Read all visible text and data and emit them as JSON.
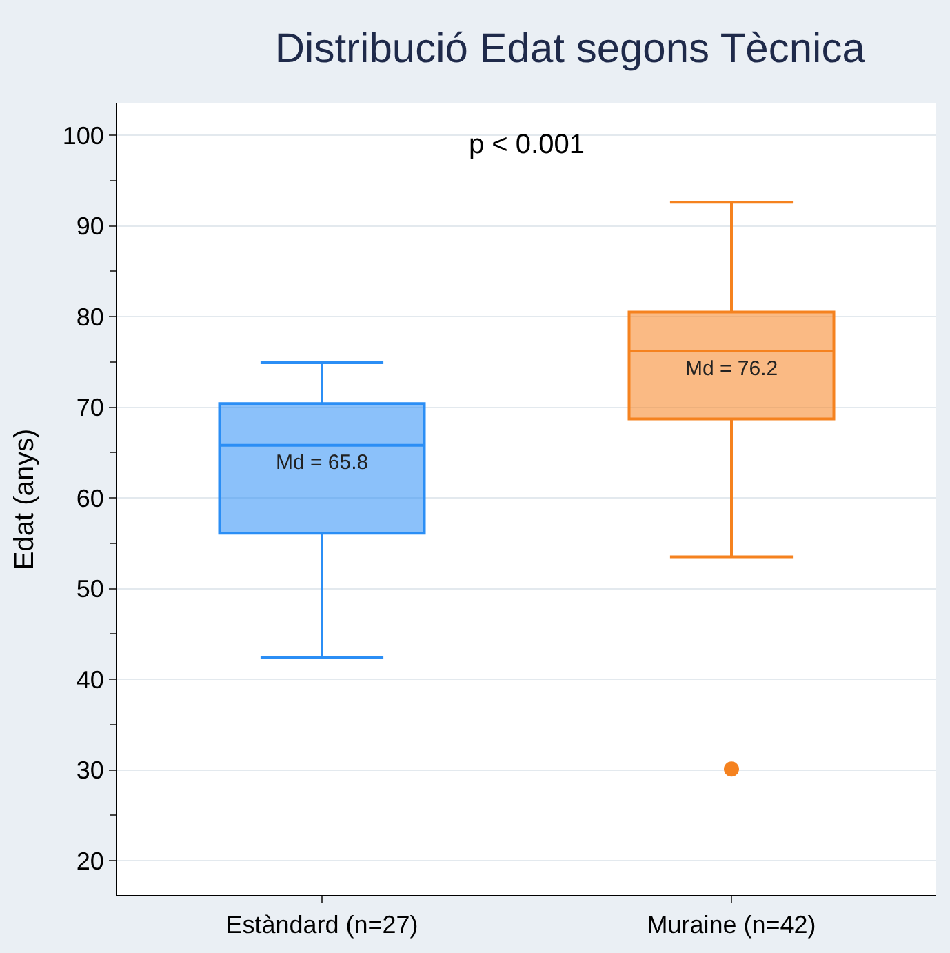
{
  "chart_data": {
    "type": "box",
    "title": "Distribució Edat segons Tècnica",
    "ylabel": "Edat (anys)",
    "categories": [
      "Estàndard (n=27)",
      "Muraine (n=42)"
    ],
    "colors": [
      "#2b8ef5",
      "#f5821f"
    ],
    "boxes": [
      {
        "low": 42.4,
        "q1": 56.1,
        "median": 65.8,
        "q3": 70.4,
        "high": 74.9
      },
      {
        "low": 53.5,
        "q1": 68.7,
        "median": 76.2,
        "q3": 80.5,
        "high": 92.6,
        "outliers": [
          30.1
        ]
      }
    ],
    "ylim": [
      16.2,
      103.5
    ],
    "yticks": [
      20,
      30,
      40,
      50,
      60,
      70,
      80,
      90,
      100
    ],
    "grid": "y",
    "annotations": [
      {
        "text": "Md = 65.8",
        "x": "Estàndard (n=27)",
        "y": 65.8
      },
      {
        "text": "Md = 76.2",
        "x": "Muraine (n=42)",
        "y": 76.2
      },
      "p < 0.001"
    ]
  }
}
